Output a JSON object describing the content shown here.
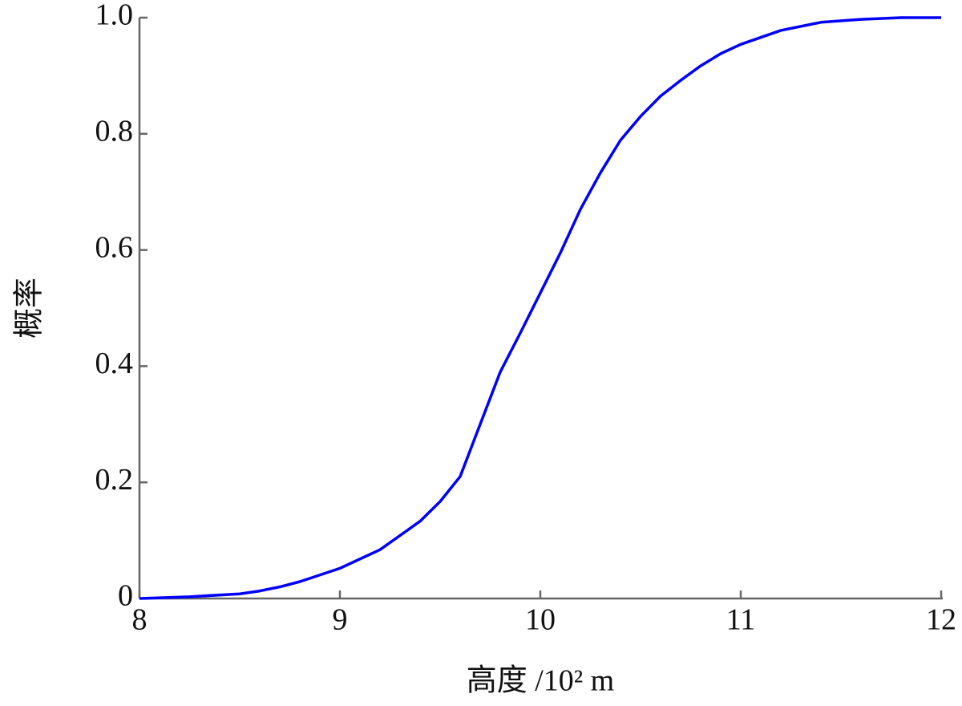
{
  "chart_data": {
    "type": "line",
    "x_label": "高度 /10² m",
    "y_label": "概率",
    "x": [
      8,
      8.25,
      8.5,
      8.6,
      8.7,
      8.8,
      9,
      9.2,
      9.4,
      9.5,
      9.6,
      9.7,
      9.8,
      9.9,
      10,
      10.1,
      10.2,
      10.3,
      10.4,
      10.5,
      10.6,
      10.7,
      10.8,
      10.9,
      11,
      11.2,
      11.4,
      11.6,
      11.8,
      12
    ],
    "series": [
      {
        "color": "#0000ff",
        "values": [
          0,
          0.003,
          0.008,
          0.013,
          0.02,
          0.029,
          0.052,
          0.084,
          0.133,
          0.167,
          0.21,
          0.3,
          0.39,
          0.457,
          0.526,
          0.595,
          0.67,
          0.733,
          0.789,
          0.83,
          0.865,
          0.892,
          0.917,
          0.938,
          0.954,
          0.978,
          0.992,
          0.997,
          1,
          1
        ]
      }
    ],
    "xlim": [
      8,
      12
    ],
    "ylim": [
      0,
      1
    ],
    "xticks": [
      8,
      9,
      10,
      11,
      12
    ],
    "yticks": [
      0,
      {
        "value": 0.2,
        "label": "0.2"
      },
      {
        "value": 0.4,
        "label": "0.4"
      },
      {
        "value": 0.6,
        "label": "0.6"
      },
      {
        "value": 0.8,
        "label": "0.8"
      },
      {
        "value": 1,
        "label": "1.0"
      }
    ]
  }
}
